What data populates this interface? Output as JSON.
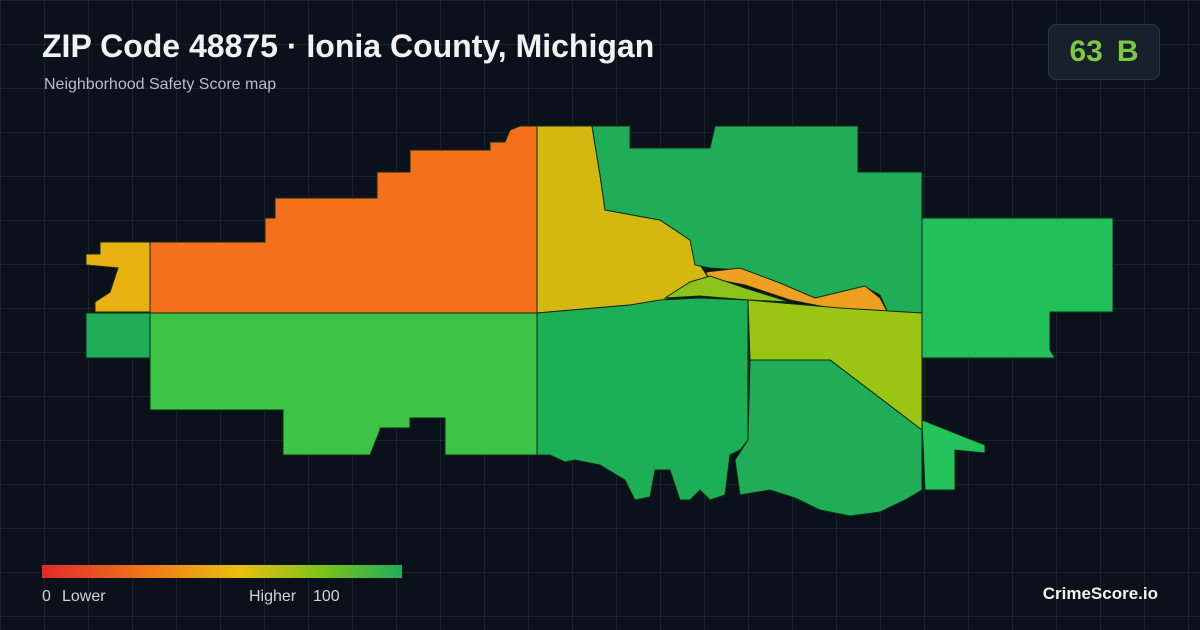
{
  "header": {
    "title": "ZIP Code 48875 · Ionia County, Michigan",
    "subtitle": "Neighborhood Safety Score map"
  },
  "score": {
    "value": 63,
    "grade": "B"
  },
  "legend": {
    "min": 0,
    "low_label": "Lower",
    "high_label": "Higher",
    "max": 100
  },
  "footer": {
    "brand": "CrimeScore.io"
  }
}
